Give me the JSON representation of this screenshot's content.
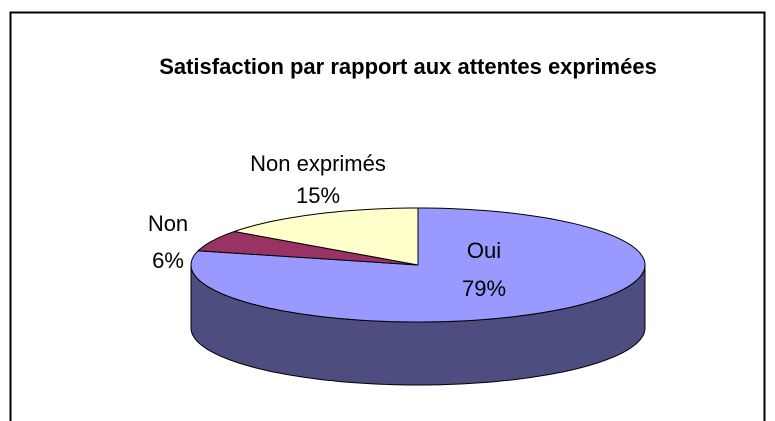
{
  "chart_data": {
    "type": "pie",
    "title": "Satisfaction par rapport aux attentes exprimées",
    "categories": [
      "Oui",
      "Non",
      "Non exprimés"
    ],
    "values": [
      79,
      6,
      15
    ],
    "value_labels": [
      "79%",
      "6%",
      "15%"
    ],
    "colors": [
      "#9999ff",
      "#993366",
      "#ffffcc"
    ]
  }
}
